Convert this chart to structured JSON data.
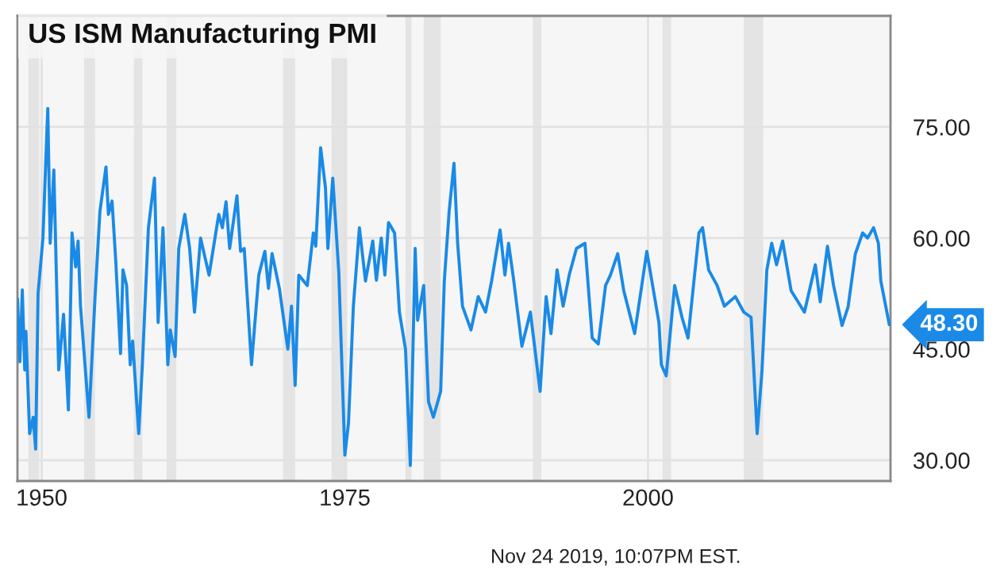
{
  "chart_data": {
    "type": "line",
    "title": "US ISM Manufacturing PMI",
    "x": [
      1948.0,
      1948.2,
      1948.4,
      1948.6,
      1948.7,
      1949.0,
      1949.3,
      1949.5,
      1949.7,
      1950.1,
      1950.5,
      1950.7,
      1951.0,
      1951.4,
      1951.8,
      1952.2,
      1952.5,
      1952.8,
      1953.0,
      1953.2,
      1953.9,
      1954.4,
      1954.8,
      1955.3,
      1955.5,
      1955.8,
      1956.1,
      1956.5,
      1956.7,
      1957.0,
      1957.3,
      1957.5,
      1958.0,
      1958.3,
      1958.8,
      1959.3,
      1959.6,
      1960.0,
      1960.4,
      1960.6,
      1961.0,
      1961.3,
      1961.8,
      1962.2,
      1962.6,
      1963.1,
      1963.8,
      1964.6,
      1964.9,
      1965.2,
      1965.5,
      1966.1,
      1966.4,
      1966.7,
      1967.3,
      1967.9,
      1968.4,
      1968.7,
      1969.0,
      1969.6,
      1970.3,
      1970.6,
      1970.9,
      1971.2,
      1971.9,
      1972.4,
      1972.6,
      1973.0,
      1973.4,
      1973.6,
      1974.0,
      1974.5,
      1975.0,
      1975.3,
      1975.7,
      1976.2,
      1976.7,
      1977.3,
      1977.6,
      1978.0,
      1978.3,
      1978.6,
      1979.1,
      1979.5,
      1980.0,
      1980.4,
      1980.8,
      1981.0,
      1981.5,
      1981.9,
      1982.3,
      1982.9,
      1983.2,
      1983.6,
      1984.0,
      1984.3,
      1984.7,
      1985.4,
      1986.0,
      1986.6,
      1987.1,
      1987.8,
      1988.2,
      1988.5,
      1988.9,
      1989.6,
      1990.3,
      1991.1,
      1991.6,
      1992.0,
      1992.5,
      1993.0,
      1993.5,
      1994.1,
      1994.8,
      1995.4,
      1995.9,
      1996.5,
      1996.9,
      1997.5,
      1998.0,
      1998.9,
      1999.9,
      2000.9,
      2001.1,
      2001.5,
      2002.2,
      2002.8,
      2003.3,
      2004.2,
      2004.5,
      2005.0,
      2005.7,
      2006.3,
      2007.2,
      2007.9,
      2008.5,
      2009.0,
      2009.4,
      2009.8,
      2010.2,
      2010.6,
      2011.1,
      2011.8,
      2012.9,
      2013.8,
      2014.2,
      2014.8,
      2015.3,
      2016.0,
      2016.5,
      2017.1,
      2017.7,
      2018.1,
      2018.6,
      2019.0,
      2019.2,
      2019.9
    ],
    "series": [
      {
        "color": "#1a8ae6",
        "values": [
          51.8,
          43.3,
          53.0,
          42.2,
          47.4,
          33.6,
          35.8,
          31.5,
          52.5,
          60.0,
          77.5,
          59.3,
          69.2,
          42.2,
          49.7,
          36.8,
          60.7,
          56.1,
          59.6,
          50.8,
          35.8,
          52.1,
          63.6,
          69.6,
          63.2,
          65.0,
          57.1,
          44.4,
          55.7,
          53.6,
          42.9,
          46.1,
          33.6,
          42.9,
          61.4,
          68.1,
          48.6,
          61.4,
          42.9,
          47.6,
          44.0,
          58.6,
          63.2,
          58.6,
          50.0,
          60.0,
          55.0,
          63.2,
          61.4,
          64.9,
          58.6,
          65.7,
          58.2,
          58.6,
          42.9,
          55.0,
          58.2,
          53.2,
          57.9,
          53.2,
          45.0,
          50.8,
          40.1,
          55.0,
          53.6,
          60.7,
          58.9,
          72.2,
          66.8,
          58.6,
          68.1,
          55.4,
          30.7,
          35.0,
          50.8,
          61.4,
          54.2,
          59.6,
          54.3,
          60.0,
          55.0,
          62.1,
          60.7,
          50.0,
          45.0,
          29.3,
          58.6,
          48.9,
          53.6,
          37.9,
          35.8,
          39.3,
          54.2,
          63.6,
          70.1,
          59.3,
          50.8,
          47.6,
          52.1,
          50.0,
          54.2,
          61.1,
          55.0,
          59.3,
          54.6,
          45.4,
          50.0,
          39.3,
          52.1,
          47.1,
          55.7,
          50.8,
          55.0,
          58.6,
          59.3,
          46.5,
          45.7,
          53.6,
          55.0,
          57.9,
          52.9,
          47.1,
          58.2,
          48.6,
          42.9,
          41.4,
          53.6,
          49.3,
          46.5,
          60.7,
          61.4,
          55.7,
          53.6,
          50.8,
          52.1,
          50.0,
          49.3,
          33.6,
          42.1,
          55.7,
          59.3,
          56.4,
          59.6,
          52.9,
          50.0,
          56.4,
          51.4,
          58.9,
          53.6,
          48.2,
          50.7,
          57.9,
          60.7,
          60.0,
          61.4,
          59.3,
          54.2,
          48.3
        ]
      }
    ],
    "xlim": [
      1948.0,
      2020.0
    ],
    "xticks": [
      1950,
      1975,
      2000
    ],
    "ylim": [
      27.2,
      90.0
    ],
    "yticks": [
      {
        "value": 30,
        "label": "30.00"
      },
      {
        "value": 45,
        "label": "45.00"
      },
      {
        "value": 60,
        "label": "60.00"
      },
      {
        "value": 75,
        "label": "75.00"
      }
    ],
    "grid": true,
    "bands": [
      {
        "axis": "x",
        "from": 1948.9,
        "to": 1949.8,
        "color": "#e4e4e4"
      },
      {
        "axis": "x",
        "from": 1953.5,
        "to": 1954.4,
        "color": "#e4e4e4"
      },
      {
        "axis": "x",
        "from": 1957.6,
        "to": 1958.3,
        "color": "#e4e4e4"
      },
      {
        "axis": "x",
        "from": 1960.3,
        "to": 1961.1,
        "color": "#e4e4e4"
      },
      {
        "axis": "x",
        "from": 1969.9,
        "to": 1970.9,
        "color": "#e4e4e4"
      },
      {
        "axis": "x",
        "from": 1973.9,
        "to": 1975.2,
        "color": "#e4e4e4"
      },
      {
        "axis": "x",
        "from": 1980.0,
        "to": 1980.5,
        "color": "#e4e4e4"
      },
      {
        "axis": "x",
        "from": 1981.5,
        "to": 1982.9,
        "color": "#e4e4e4"
      },
      {
        "axis": "x",
        "from": 1990.5,
        "to": 1991.2,
        "color": "#e4e4e4"
      },
      {
        "axis": "x",
        "from": 2001.2,
        "to": 2001.9,
        "color": "#e4e4e4"
      },
      {
        "axis": "x",
        "from": 2007.9,
        "to": 2009.5,
        "color": "#e4e4e4"
      }
    ],
    "annotations": [
      {
        "text": "48.30",
        "x": 2019.9,
        "y": 48.3
      },
      "Nov 24 2019, 10:07PM EST."
    ]
  }
}
